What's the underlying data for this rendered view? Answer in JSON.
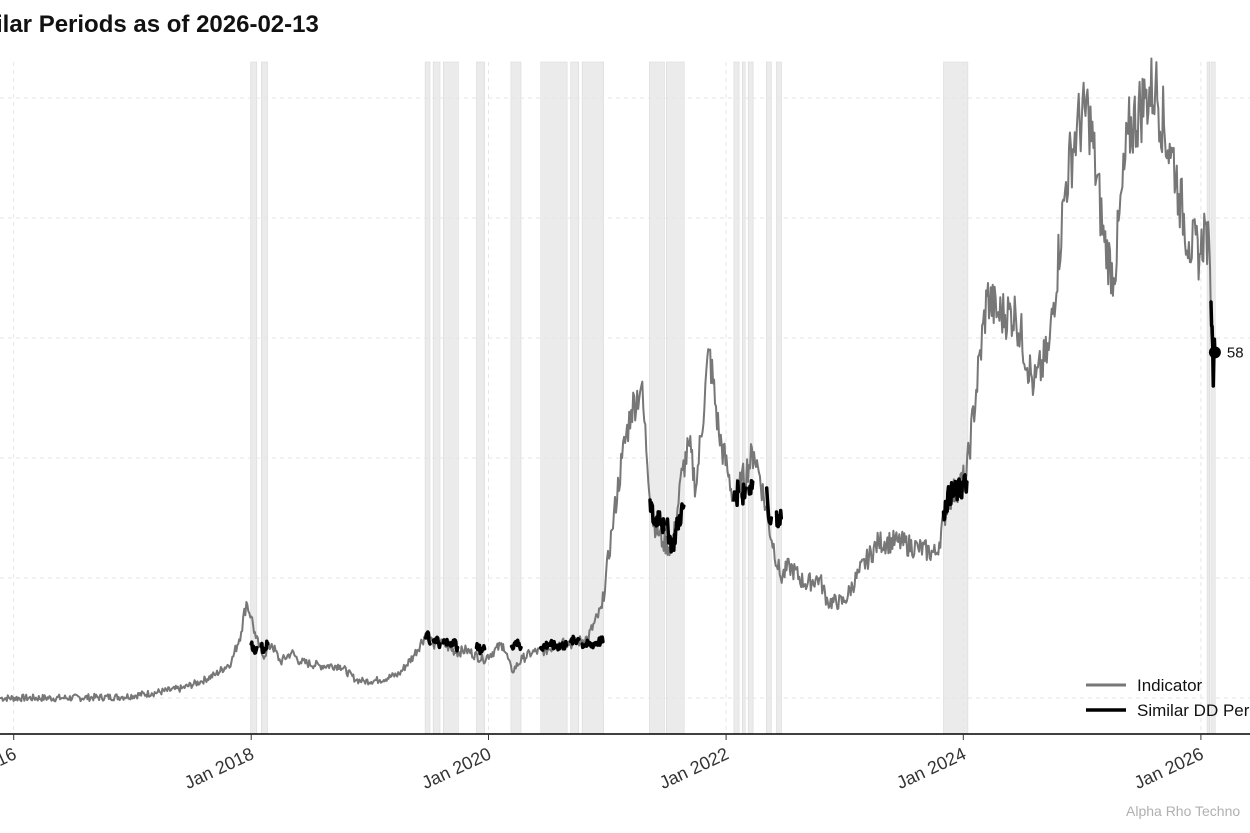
{
  "chart_data": {
    "type": "line",
    "title": "ilar Periods as of 2026-02-13",
    "credit": "Alpha Rho Techno",
    "end_label": "58",
    "x_tick_labels": [
      {
        "date": "2016-01-01",
        "label": "16"
      },
      {
        "date": "2018-01-01",
        "label": "Jan 2018"
      },
      {
        "date": "2020-01-01",
        "label": "Jan 2020"
      },
      {
        "date": "2022-01-01",
        "label": "Jan 2022"
      },
      {
        "date": "2024-01-01",
        "label": "Jan 2024"
      },
      {
        "date": "2026-01-01",
        "label": "Jan 2026"
      }
    ],
    "xlim": [
      "2015-11-20",
      "2026-06-01"
    ],
    "ylim": [
      -0.3,
      5.3
    ],
    "y_gridlines": [
      0,
      1,
      2,
      3,
      4,
      5
    ],
    "grid": true,
    "legend": {
      "placement": "bottom-right",
      "entries": [
        {
          "label": "Indicator",
          "color": "#777777"
        },
        {
          "label": "Similar DD Per",
          "color": "#000000"
        }
      ]
    },
    "colors": {
      "indicator": "#777777",
      "similar": "#000000",
      "shade": "#ebebeb",
      "grid": "#e6e6e6"
    },
    "shaded_periods": [
      [
        "2017-12-30",
        "2018-01-18"
      ],
      [
        "2018-02-01",
        "2018-02-20"
      ],
      [
        "2019-06-20",
        "2019-07-05"
      ],
      [
        "2019-07-15",
        "2019-08-05"
      ],
      [
        "2019-08-15",
        "2019-09-30"
      ],
      [
        "2019-11-25",
        "2019-12-20"
      ],
      [
        "2020-03-10",
        "2020-04-10"
      ],
      [
        "2020-06-10",
        "2020-08-30"
      ],
      [
        "2020-09-10",
        "2020-10-05"
      ],
      [
        "2020-10-15",
        "2020-12-20"
      ],
      [
        "2021-05-10",
        "2021-06-25"
      ],
      [
        "2021-07-01",
        "2021-08-25"
      ],
      [
        "2022-01-25",
        "2022-02-10"
      ],
      [
        "2022-02-20",
        "2022-03-01"
      ],
      [
        "2022-03-10",
        "2022-03-25"
      ],
      [
        "2022-05-05",
        "2022-05-20"
      ],
      [
        "2022-06-05",
        "2022-06-20"
      ],
      [
        "2023-11-01",
        "2024-01-15"
      ],
      [
        "2026-01-20",
        "2026-01-28"
      ],
      [
        "2026-02-01",
        "2026-02-14"
      ]
    ],
    "series": [
      {
        "name": "Indicator",
        "color": "#777777",
        "points": [
          [
            "2015-11-20",
            0.0
          ],
          [
            "2016-06-01",
            0.0
          ],
          [
            "2016-12-01",
            0.01
          ],
          [
            "2017-03-01",
            0.04
          ],
          [
            "2017-06-01",
            0.08
          ],
          [
            "2017-08-01",
            0.14
          ],
          [
            "2017-09-15",
            0.2
          ],
          [
            "2017-11-01",
            0.3
          ],
          [
            "2017-12-01",
            0.55
          ],
          [
            "2017-12-17",
            0.8
          ],
          [
            "2018-01-01",
            0.68
          ],
          [
            "2018-01-15",
            0.5
          ],
          [
            "2018-02-06",
            0.35
          ],
          [
            "2018-03-05",
            0.45
          ],
          [
            "2018-04-01",
            0.3
          ],
          [
            "2018-05-05",
            0.38
          ],
          [
            "2018-06-01",
            0.3
          ],
          [
            "2018-08-01",
            0.27
          ],
          [
            "2018-10-01",
            0.27
          ],
          [
            "2018-11-20",
            0.15
          ],
          [
            "2018-12-15",
            0.14
          ],
          [
            "2019-02-01",
            0.15
          ],
          [
            "2019-04-01",
            0.2
          ],
          [
            "2019-05-15",
            0.35
          ],
          [
            "2019-06-26",
            0.55
          ],
          [
            "2019-07-15",
            0.45
          ],
          [
            "2019-08-15",
            0.45
          ],
          [
            "2019-09-25",
            0.38
          ],
          [
            "2019-10-25",
            0.4
          ],
          [
            "2019-12-15",
            0.32
          ],
          [
            "2020-02-15",
            0.45
          ],
          [
            "2020-03-13",
            0.22
          ],
          [
            "2020-04-15",
            0.33
          ],
          [
            "2020-05-15",
            0.38
          ],
          [
            "2020-07-01",
            0.4
          ],
          [
            "2020-08-15",
            0.48
          ],
          [
            "2020-09-15",
            0.45
          ],
          [
            "2020-11-01",
            0.5
          ],
          [
            "2020-12-15",
            0.75
          ],
          [
            "2021-01-15",
            1.4
          ],
          [
            "2021-02-15",
            2.0
          ],
          [
            "2021-03-15",
            2.4
          ],
          [
            "2021-04-15",
            2.6
          ],
          [
            "2021-05-19",
            1.5
          ],
          [
            "2021-06-20",
            1.3
          ],
          [
            "2021-07-20",
            1.25
          ],
          [
            "2021-08-20",
            1.9
          ],
          [
            "2021-09-10",
            2.1
          ],
          [
            "2021-09-30",
            1.75
          ],
          [
            "2021-11-10",
            2.9
          ],
          [
            "2021-12-10",
            2.2
          ],
          [
            "2022-01-05",
            1.9
          ],
          [
            "2022-01-25",
            1.65
          ],
          [
            "2022-02-10",
            1.75
          ],
          [
            "2022-03-28",
            2.05
          ],
          [
            "2022-04-15",
            1.85
          ],
          [
            "2022-05-12",
            1.45
          ],
          [
            "2022-06-18",
            1.0
          ],
          [
            "2022-07-15",
            1.1
          ],
          [
            "2022-09-01",
            0.95
          ],
          [
            "2022-10-15",
            1.0
          ],
          [
            "2022-11-10",
            0.8
          ],
          [
            "2022-12-30",
            0.8
          ],
          [
            "2023-02-15",
            1.05
          ],
          [
            "2023-04-15",
            1.3
          ],
          [
            "2023-06-15",
            1.3
          ],
          [
            "2023-08-15",
            1.25
          ],
          [
            "2023-10-10",
            1.2
          ],
          [
            "2023-11-15",
            1.65
          ],
          [
            "2024-01-10",
            1.85
          ],
          [
            "2024-03-14",
            3.35
          ],
          [
            "2024-04-15",
            3.2
          ],
          [
            "2024-06-10",
            3.2
          ],
          [
            "2024-08-05",
            2.6
          ],
          [
            "2024-09-20",
            2.9
          ],
          [
            "2024-11-12",
            4.3
          ],
          [
            "2024-12-15",
            4.75
          ],
          [
            "2025-01-20",
            4.9
          ],
          [
            "2025-03-10",
            3.8
          ],
          [
            "2025-04-08",
            3.5
          ],
          [
            "2025-05-22",
            4.7
          ],
          [
            "2025-07-14",
            5.0
          ],
          [
            "2025-08-14",
            5.1
          ],
          [
            "2025-09-30",
            4.5
          ],
          [
            "2025-10-06",
            4.55
          ],
          [
            "2025-10-25",
            4.2
          ],
          [
            "2025-11-25",
            3.8
          ],
          [
            "2025-12-31",
            3.7
          ],
          [
            "2026-01-14",
            3.95
          ],
          [
            "2026-01-29",
            3.6
          ],
          [
            "2026-02-05",
            2.9
          ]
        ]
      },
      {
        "name": "Similar DD Per",
        "color": "#000000",
        "segments": [
          [
            [
              "2018-01-01",
              0.45
            ],
            [
              "2018-01-10",
              0.4
            ],
            [
              "2018-01-18",
              0.42
            ]
          ],
          [
            [
              "2018-02-01",
              0.43
            ],
            [
              "2018-02-10",
              0.4
            ],
            [
              "2018-02-20",
              0.45
            ]
          ],
          [
            [
              "2019-06-22",
              0.5
            ],
            [
              "2019-06-28",
              0.55
            ],
            [
              "2019-07-05",
              0.45
            ]
          ],
          [
            [
              "2019-07-15",
              0.48
            ],
            [
              "2019-07-25",
              0.5
            ],
            [
              "2019-08-05",
              0.45
            ]
          ],
          [
            [
              "2019-08-15",
              0.46
            ],
            [
              "2019-09-01",
              0.45
            ],
            [
              "2019-09-15",
              0.48
            ],
            [
              "2019-09-28",
              0.42
            ]
          ],
          [
            [
              "2019-11-25",
              0.42
            ],
            [
              "2019-12-10",
              0.4
            ],
            [
              "2019-12-20",
              0.41
            ]
          ],
          [
            [
              "2020-03-12",
              0.43
            ],
            [
              "2020-03-25",
              0.47
            ],
            [
              "2020-04-10",
              0.42
            ]
          ],
          [
            [
              "2020-06-10",
              0.42
            ],
            [
              "2020-07-05",
              0.45
            ],
            [
              "2020-07-25",
              0.43
            ],
            [
              "2020-08-28",
              0.44
            ]
          ],
          [
            [
              "2020-09-10",
              0.47
            ],
            [
              "2020-10-05",
              0.49
            ]
          ],
          [
            [
              "2020-10-15",
              0.45
            ],
            [
              "2020-11-10",
              0.44
            ],
            [
              "2020-12-05",
              0.47
            ],
            [
              "2020-12-18",
              0.47
            ]
          ],
          [
            [
              "2021-05-12",
              1.65
            ],
            [
              "2021-05-25",
              1.45
            ],
            [
              "2021-06-10",
              1.55
            ],
            [
              "2021-06-24",
              1.4
            ]
          ],
          [
            [
              "2021-07-01",
              1.45
            ],
            [
              "2021-07-20",
              1.25
            ],
            [
              "2021-08-05",
              1.45
            ],
            [
              "2021-08-24",
              1.6
            ]
          ],
          [
            [
              "2022-01-25",
              1.65
            ],
            [
              "2022-02-08",
              1.72
            ]
          ],
          [
            [
              "2022-02-20",
              1.7
            ],
            [
              "2022-03-01",
              1.75
            ]
          ],
          [
            [
              "2022-03-12",
              1.75
            ],
            [
              "2022-03-24",
              1.8
            ]
          ],
          [
            [
              "2022-05-06",
              1.75
            ],
            [
              "2022-05-12",
              1.5
            ],
            [
              "2022-05-20",
              1.5
            ]
          ],
          [
            [
              "2022-06-05",
              1.55
            ],
            [
              "2022-06-12",
              1.45
            ],
            [
              "2022-06-20",
              1.5
            ]
          ],
          [
            [
              "2023-11-01",
              1.55
            ],
            [
              "2023-11-20",
              1.7
            ],
            [
              "2023-12-15",
              1.72
            ],
            [
              "2024-01-12",
              1.8
            ]
          ],
          [
            [
              "2026-02-01",
              3.3
            ],
            [
              "2026-02-03",
              3.1
            ],
            [
              "2026-02-06",
              2.95
            ],
            [
              "2026-02-08",
              2.6
            ],
            [
              "2026-02-10",
              2.85
            ],
            [
              "2026-02-13",
              2.88
            ]
          ]
        ]
      }
    ],
    "end_point": {
      "date": "2026-02-13",
      "value": 2.88
    }
  }
}
